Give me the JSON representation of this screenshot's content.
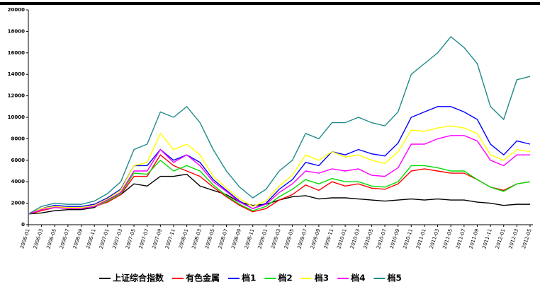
{
  "chart_data": {
    "type": "line",
    "categories": [
      "2006-01",
      "2006-03",
      "2006-05",
      "2006-07",
      "2006-09",
      "2006-11",
      "2007-01",
      "2007-03",
      "2007-05",
      "2007-07",
      "2007-09",
      "2007-11",
      "2008-01",
      "2008-03",
      "2008-05",
      "2008-07",
      "2008-09",
      "2008-11",
      "2009-01",
      "2009-03",
      "2009-05",
      "2009-07",
      "2009-09",
      "2009-11",
      "2010-01",
      "2010-03",
      "2010-05",
      "2010-07",
      "2010-09",
      "2010-11",
      "2011-01",
      "2011-03",
      "2011-05",
      "2011-07",
      "2011-09",
      "2011-11",
      "2012-01",
      "2012-03",
      "2012-05"
    ],
    "series": [
      {
        "name": "上证综合指数",
        "color": "#000000",
        "values": [
          1000,
          1100,
          1300,
          1400,
          1400,
          1600,
          2400,
          2800,
          3800,
          3600,
          4500,
          4500,
          4700,
          3600,
          3200,
          2800,
          2100,
          1800,
          1900,
          2300,
          2600,
          2700,
          2400,
          2500,
          2500,
          2400,
          2300,
          2200,
          2300,
          2400,
          2300,
          2400,
          2300,
          2300,
          2100,
          2000,
          1800,
          1900,
          1900
        ]
      },
      {
        "name": "有色金属",
        "color": "#ff0000",
        "values": [
          1000,
          1300,
          1600,
          1600,
          1500,
          1700,
          2100,
          2800,
          4500,
          4500,
          6500,
          5500,
          5000,
          4500,
          3500,
          2600,
          1800,
          1200,
          1500,
          2300,
          2800,
          3700,
          3200,
          4000,
          3600,
          3800,
          3400,
          3300,
          3800,
          5000,
          5200,
          5000,
          4800,
          4800,
          4200,
          3500,
          3200,
          3800,
          4000
        ]
      },
      {
        "name": "档1",
        "color": "#0000ff",
        "values": [
          1000,
          1500,
          1800,
          1700,
          1700,
          1900,
          2500,
          3300,
          5500,
          5500,
          7000,
          6000,
          6500,
          5800,
          4200,
          3200,
          2200,
          1500,
          2000,
          3300,
          4200,
          5800,
          5500,
          6800,
          6500,
          7000,
          6600,
          6400,
          7600,
          10000,
          10500,
          11000,
          11000,
          10500,
          9800,
          7500,
          6500,
          7800,
          7500
        ]
      },
      {
        "name": "档2",
        "color": "#00dd00",
        "values": [
          1000,
          1400,
          1600,
          1500,
          1500,
          1700,
          2200,
          2900,
          4800,
          4700,
          6000,
          5000,
          5500,
          5000,
          3700,
          2700,
          1900,
          1300,
          1700,
          2600,
          3300,
          4200,
          3800,
          4300,
          4000,
          4000,
          3600,
          3500,
          4000,
          5500,
          5500,
          5300,
          5000,
          5000,
          4200,
          3500,
          3100,
          3800,
          4000
        ]
      },
      {
        "name": "档3",
        "color": "#ffff00",
        "values": [
          1000,
          1500,
          1700,
          1600,
          1600,
          1800,
          2400,
          3200,
          5500,
          5800,
          8500,
          7000,
          7500,
          6500,
          4500,
          3400,
          2400,
          1700,
          2200,
          3600,
          4600,
          6500,
          6000,
          6800,
          6300,
          6500,
          6000,
          5700,
          6800,
          8800,
          8700,
          9000,
          9200,
          9000,
          8500,
          6500,
          6000,
          7000,
          6800
        ]
      },
      {
        "name": "档4",
        "color": "#ff00ff",
        "values": [
          1000,
          1400,
          1600,
          1500,
          1500,
          1700,
          2300,
          3000,
          5000,
          5000,
          7000,
          5800,
          6500,
          5500,
          4000,
          3100,
          2100,
          1500,
          1900,
          3000,
          3800,
          5000,
          4800,
          5200,
          5000,
          5200,
          4600,
          4500,
          5300,
          7500,
          7500,
          8000,
          8300,
          8300,
          7800,
          6000,
          5500,
          6500,
          6500
        ]
      },
      {
        "name": "档5",
        "color": "#1f8a8a",
        "values": [
          1000,
          1700,
          2000,
          1900,
          1900,
          2200,
          2900,
          4000,
          7000,
          7500,
          10500,
          10000,
          11000,
          9500,
          7000,
          5000,
          3500,
          2500,
          3300,
          5000,
          6000,
          8500,
          8000,
          9500,
          9500,
          10000,
          9500,
          9200,
          10500,
          14000,
          15000,
          16000,
          17500,
          16500,
          15000,
          11000,
          9800,
          13500,
          13800
        ]
      }
    ],
    "ylim": [
      0,
      20000
    ],
    "yticks": [
      0,
      2000,
      4000,
      6000,
      8000,
      10000,
      12000,
      14000,
      16000,
      18000,
      20000
    ]
  }
}
